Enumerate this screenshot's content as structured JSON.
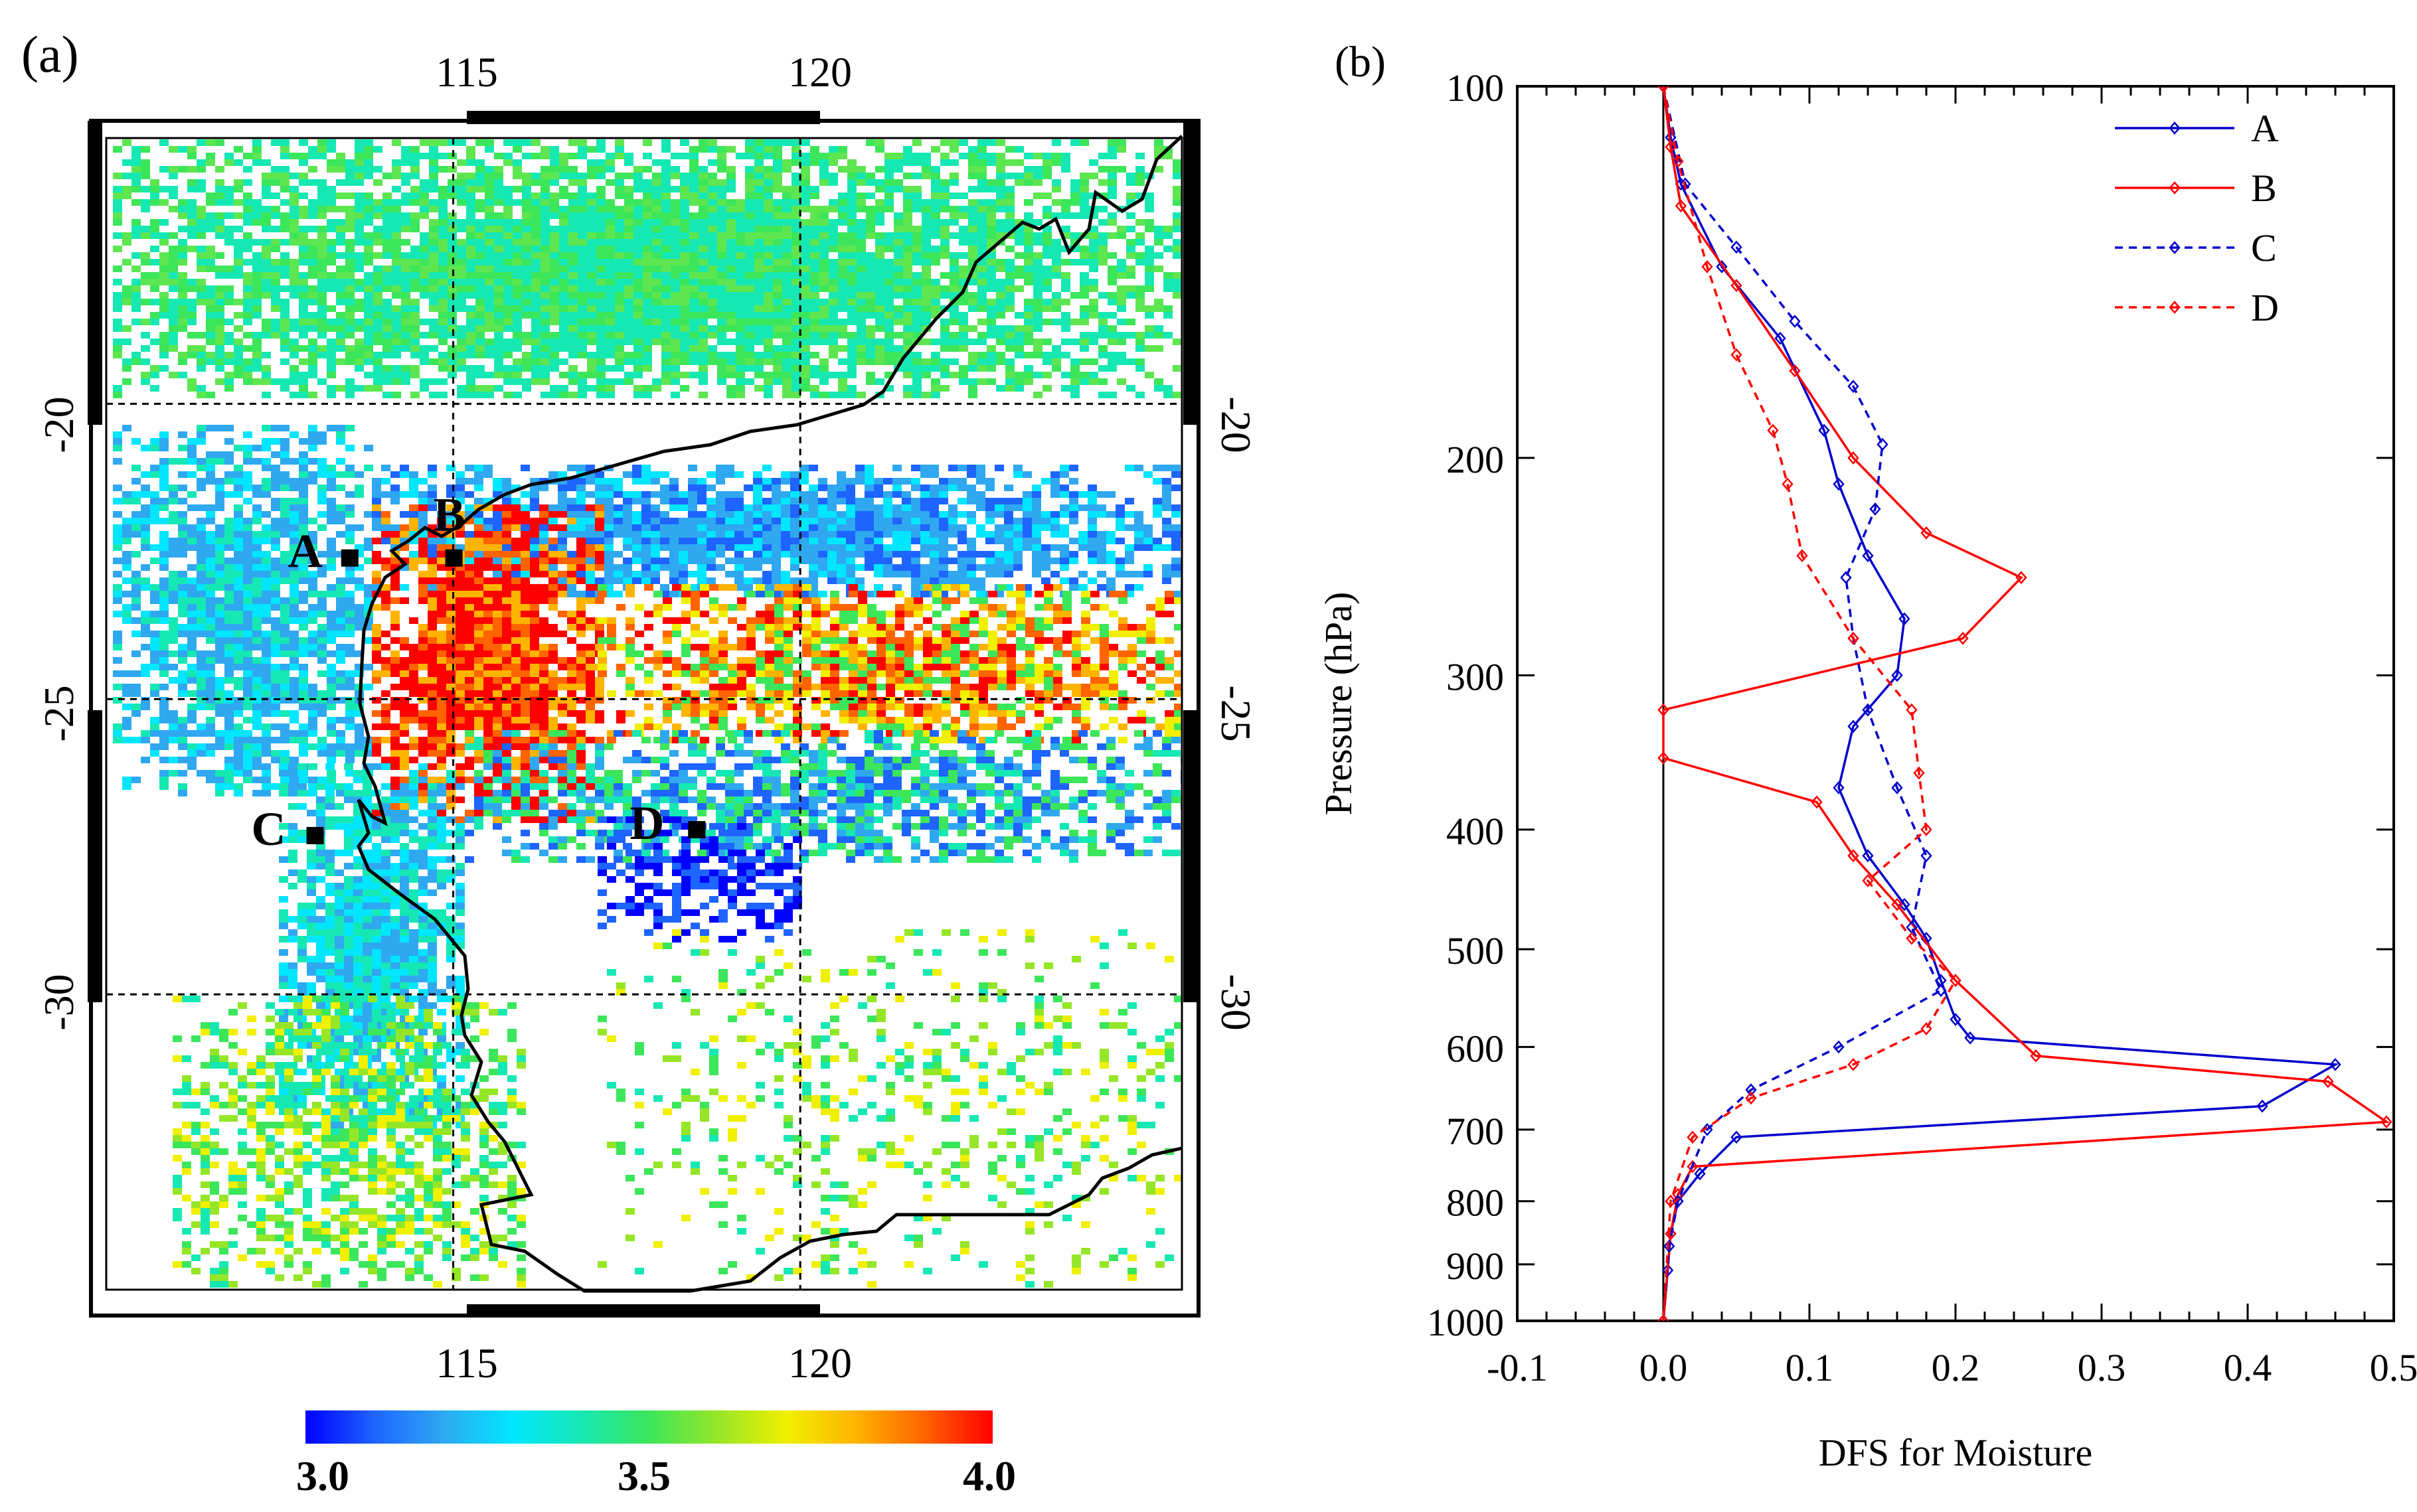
{
  "panel_a_label": "(a)",
  "panel_b_label": "(b)",
  "chart_data": [
    {
      "type": "map",
      "panel": "(a)",
      "lon_ticks": [
        "115",
        "120"
      ],
      "lat_ticks": [
        "-20",
        "-25",
        "-30"
      ],
      "lon_range": [
        110,
        125.5
      ],
      "lat_range": [
        -35,
        -15.5
      ],
      "colorbar": {
        "min": 3.0,
        "max": 4.0,
        "tick_labels": [
          "3.0",
          "3.5",
          "4.0"
        ],
        "colors": [
          "#0000ff",
          "#1e64ff",
          "#2fa8f0",
          "#00e6ff",
          "#16e8b4",
          "#3ce65a",
          "#96e628",
          "#f0f000",
          "#ffb400",
          "#ff6400",
          "#ff0000"
        ]
      },
      "points": [
        {
          "name": "A",
          "lon": 113.5,
          "lat": -22.6
        },
        {
          "name": "B",
          "lon": 115.0,
          "lat": -22.6
        },
        {
          "name": "C",
          "lon": 113.0,
          "lat": -27.3
        },
        {
          "name": "D",
          "lon": 118.5,
          "lat": -27.2
        }
      ]
    },
    {
      "type": "line",
      "panel": "(b)",
      "xlabel": "DFS for Moisture",
      "ylabel": "Pressure (hPa)",
      "xlim": [
        -0.1,
        0.5
      ],
      "ylim": [
        1000,
        100
      ],
      "yscale": "log",
      "xticks": [
        "-0.1",
        "0.0",
        "0.1",
        "0.2",
        "0.3",
        "0.4",
        "0.5"
      ],
      "yticks": [
        "100",
        "200",
        "300",
        "400",
        "500",
        "600",
        "700",
        "800",
        "900",
        "1000"
      ],
      "legend_position": "top-right",
      "series": [
        {
          "name": "A",
          "color": "#0000cc",
          "style": "solid",
          "x": [
            0.0,
            0.005,
            0.012,
            0.04,
            0.08,
            0.11,
            0.12,
            0.14,
            0.165,
            0.16,
            0.13,
            0.12,
            0.14,
            0.165,
            0.18,
            0.19,
            0.2,
            0.21,
            0.46,
            0.41,
            0.05,
            0.025,
            0.01,
            0.005,
            0.003,
            0.0
          ],
          "p": [
            100,
            110,
            120,
            140,
            160,
            190,
            210,
            240,
            270,
            300,
            330,
            370,
            420,
            460,
            490,
            530,
            570,
            590,
            620,
            670,
            710,
            760,
            800,
            850,
            910,
            1000
          ]
        },
        {
          "name": "B",
          "color": "#ff0000",
          "style": "solid",
          "x": [
            0.0,
            0.005,
            0.012,
            0.05,
            0.09,
            0.13,
            0.18,
            0.245,
            0.205,
            0.0,
            0.0,
            0.105,
            0.13,
            0.16,
            0.2,
            0.255,
            0.455,
            0.495,
            0.02,
            0.01,
            0.005,
            0.0
          ],
          "p": [
            100,
            112,
            125,
            145,
            170,
            200,
            230,
            250,
            280,
            320,
            350,
            380,
            420,
            460,
            530,
            610,
            640,
            690,
            750,
            790,
            850,
            1000
          ]
        },
        {
          "name": "C",
          "color": "#0000cc",
          "style": "dashed",
          "x": [
            0.0,
            0.015,
            0.05,
            0.09,
            0.13,
            0.15,
            0.145,
            0.125,
            0.13,
            0.14,
            0.16,
            0.18,
            0.17,
            0.19,
            0.12,
            0.06,
            0.03,
            0.01,
            0.004,
            0.0
          ],
          "p": [
            100,
            120,
            135,
            155,
            175,
            195,
            220,
            250,
            280,
            320,
            370,
            420,
            480,
            540,
            600,
            650,
            700,
            800,
            870,
            1000
          ]
        },
        {
          "name": "D",
          "color": "#ff0000",
          "style": "dashed",
          "x": [
            0.0,
            0.01,
            0.03,
            0.05,
            0.075,
            0.085,
            0.095,
            0.13,
            0.17,
            0.175,
            0.18,
            0.14,
            0.17,
            0.2,
            0.18,
            0.13,
            0.06,
            0.02,
            0.005,
            0.0
          ],
          "p": [
            100,
            115,
            140,
            165,
            190,
            210,
            240,
            280,
            320,
            360,
            400,
            440,
            490,
            530,
            580,
            620,
            660,
            710,
            800,
            1000
          ]
        }
      ]
    }
  ]
}
